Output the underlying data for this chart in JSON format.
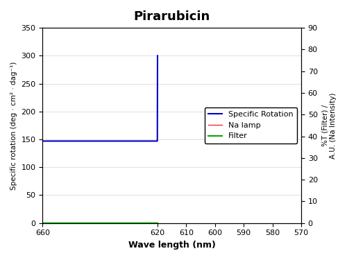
{
  "title": "Pirarubicin",
  "xlabel": "Wave length (nm)",
  "ylabel_left": "Specific rotation (deg · cm² · dag⁻¹)",
  "ylabel_right": "%T (Filter) /\nA.U. (Na Intensity)",
  "xlim": [
    660,
    620
  ],
  "ylim_left": [
    0,
    350
  ],
  "ylim_right": [
    0,
    90
  ],
  "yticks_left": [
    0,
    50,
    100,
    150,
    200,
    250,
    300,
    350
  ],
  "yticks_right": [
    0,
    10,
    20,
    30,
    40,
    50,
    60,
    70,
    80,
    90
  ],
  "xticks": [
    660,
    570,
    580,
    590,
    600,
    610,
    620
  ],
  "green_color": "#00aa00",
  "red_color": "#ff0000",
  "blue_color": "#0000cc",
  "legend_labels": [
    "Specific Rotation",
    "Na lamp",
    "Filter"
  ]
}
